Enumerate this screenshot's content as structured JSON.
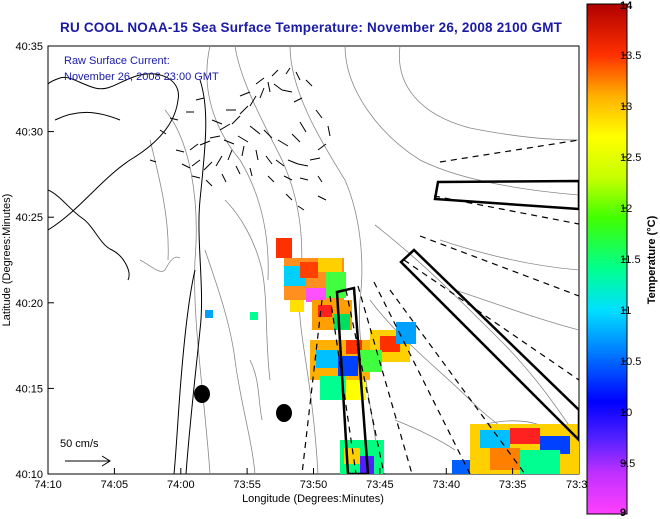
{
  "title": "RU COOL  NOAA-15  Sea Surface Temperature:  November 26, 2008 2100 GMT",
  "current_label": {
    "line1": "Raw Surface Current:",
    "line2": "November 26, 2008 23:00 GMT"
  },
  "scale_label": "50 cm/s",
  "x_axis": {
    "label": "Longitude (Degrees:Minutes)",
    "ticks": [
      "74:10",
      "74:05",
      "74:00",
      "73:55",
      "73:50",
      "73:45",
      "73:40",
      "73:35",
      "73:3"
    ]
  },
  "y_axis": {
    "label": "Latitude (Degrees:Minutes)",
    "ticks": [
      "40:35",
      "40:30",
      "40:25",
      "40:20",
      "40:15",
      "40:10"
    ]
  },
  "colorbar": {
    "label": "Temperature (°C)",
    "ticks": [
      "14",
      "13.5",
      "13",
      "12.5",
      "12",
      "11.5",
      "11",
      "10.5",
      "10",
      "9.5",
      "9"
    ],
    "min": 9,
    "max": 14
  },
  "colors": {
    "title": "#1a1aa6",
    "coast": "#000000",
    "bathymetry": "#888888"
  }
}
